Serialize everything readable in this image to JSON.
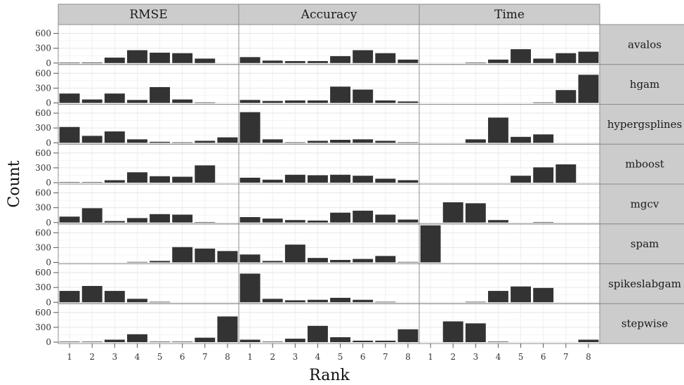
{
  "chart_data": {
    "type": "bar",
    "xlabel": "Rank",
    "ylabel": "Count",
    "columns": [
      "RMSE",
      "Accuracy",
      "Time"
    ],
    "rows": [
      "avalos",
      "hgam",
      "hypergsplines",
      "mboost",
      "mgcv",
      "spam",
      "spikeslabgam",
      "stepwise"
    ],
    "x_ticks": [
      "1",
      "2",
      "3",
      "4",
      "5",
      "6",
      "7",
      "8"
    ],
    "y_ticks": [
      "0",
      "300",
      "600"
    ],
    "ylim": [
      0,
      750
    ],
    "grid": true,
    "bar_color": "#333333",
    "panels": {
      "avalos": {
        "RMSE": [
          10,
          12,
          110,
          260,
          210,
          200,
          90,
          0
        ],
        "Accuracy": [
          120,
          50,
          40,
          40,
          140,
          260,
          200,
          70
        ],
        "Time": [
          0,
          0,
          10,
          70,
          280,
          90,
          200,
          230
        ]
      },
      "hgam": {
        "RMSE": [
          190,
          70,
          190,
          60,
          320,
          70,
          10,
          0
        ],
        "Accuracy": [
          60,
          40,
          50,
          50,
          330,
          270,
          50,
          30
        ],
        "Time": [
          0,
          0,
          0,
          0,
          0,
          10,
          260,
          570
        ]
      },
      "hypergsplines": {
        "RMSE": [
          320,
          140,
          230,
          70,
          20,
          10,
          40,
          110
        ],
        "Accuracy": [
          620,
          70,
          10,
          40,
          60,
          70,
          40,
          10
        ],
        "Time": [
          0,
          0,
          70,
          510,
          120,
          170,
          0,
          0
        ]
      },
      "mboost": {
        "RMSE": [
          10,
          10,
          50,
          210,
          130,
          120,
          350,
          0
        ],
        "Accuracy": [
          100,
          60,
          160,
          150,
          160,
          140,
          80,
          50
        ],
        "Time": [
          0,
          0,
          0,
          0,
          140,
          310,
          370,
          0
        ]
      },
      "mgcv": {
        "RMSE": [
          120,
          290,
          30,
          90,
          170,
          160,
          10,
          0
        ],
        "Accuracy": [
          110,
          80,
          50,
          40,
          200,
          240,
          160,
          60
        ],
        "Time": [
          0,
          410,
          390,
          50,
          0,
          10,
          0,
          0
        ]
      },
      "spam": {
        "RMSE": [
          0,
          0,
          0,
          10,
          30,
          310,
          280,
          230
        ],
        "Accuracy": [
          160,
          30,
          360,
          90,
          50,
          70,
          130,
          10
        ],
        "Time": [
          840,
          0,
          0,
          0,
          0,
          0,
          0,
          0
        ]
      },
      "spikeslabgam": {
        "RMSE": [
          230,
          330,
          230,
          70,
          10,
          0,
          0,
          0
        ],
        "Accuracy": [
          580,
          70,
          40,
          50,
          90,
          50,
          10,
          0
        ],
        "Time": [
          0,
          0,
          10,
          230,
          320,
          290,
          0,
          0
        ]
      },
      "stepwise": {
        "RMSE": [
          10,
          10,
          50,
          160,
          10,
          10,
          90,
          520
        ],
        "Accuracy": [
          50,
          10,
          70,
          330,
          100,
          30,
          30,
          260
        ],
        "Time": [
          0,
          420,
          380,
          10,
          0,
          0,
          0,
          50
        ]
      }
    }
  }
}
